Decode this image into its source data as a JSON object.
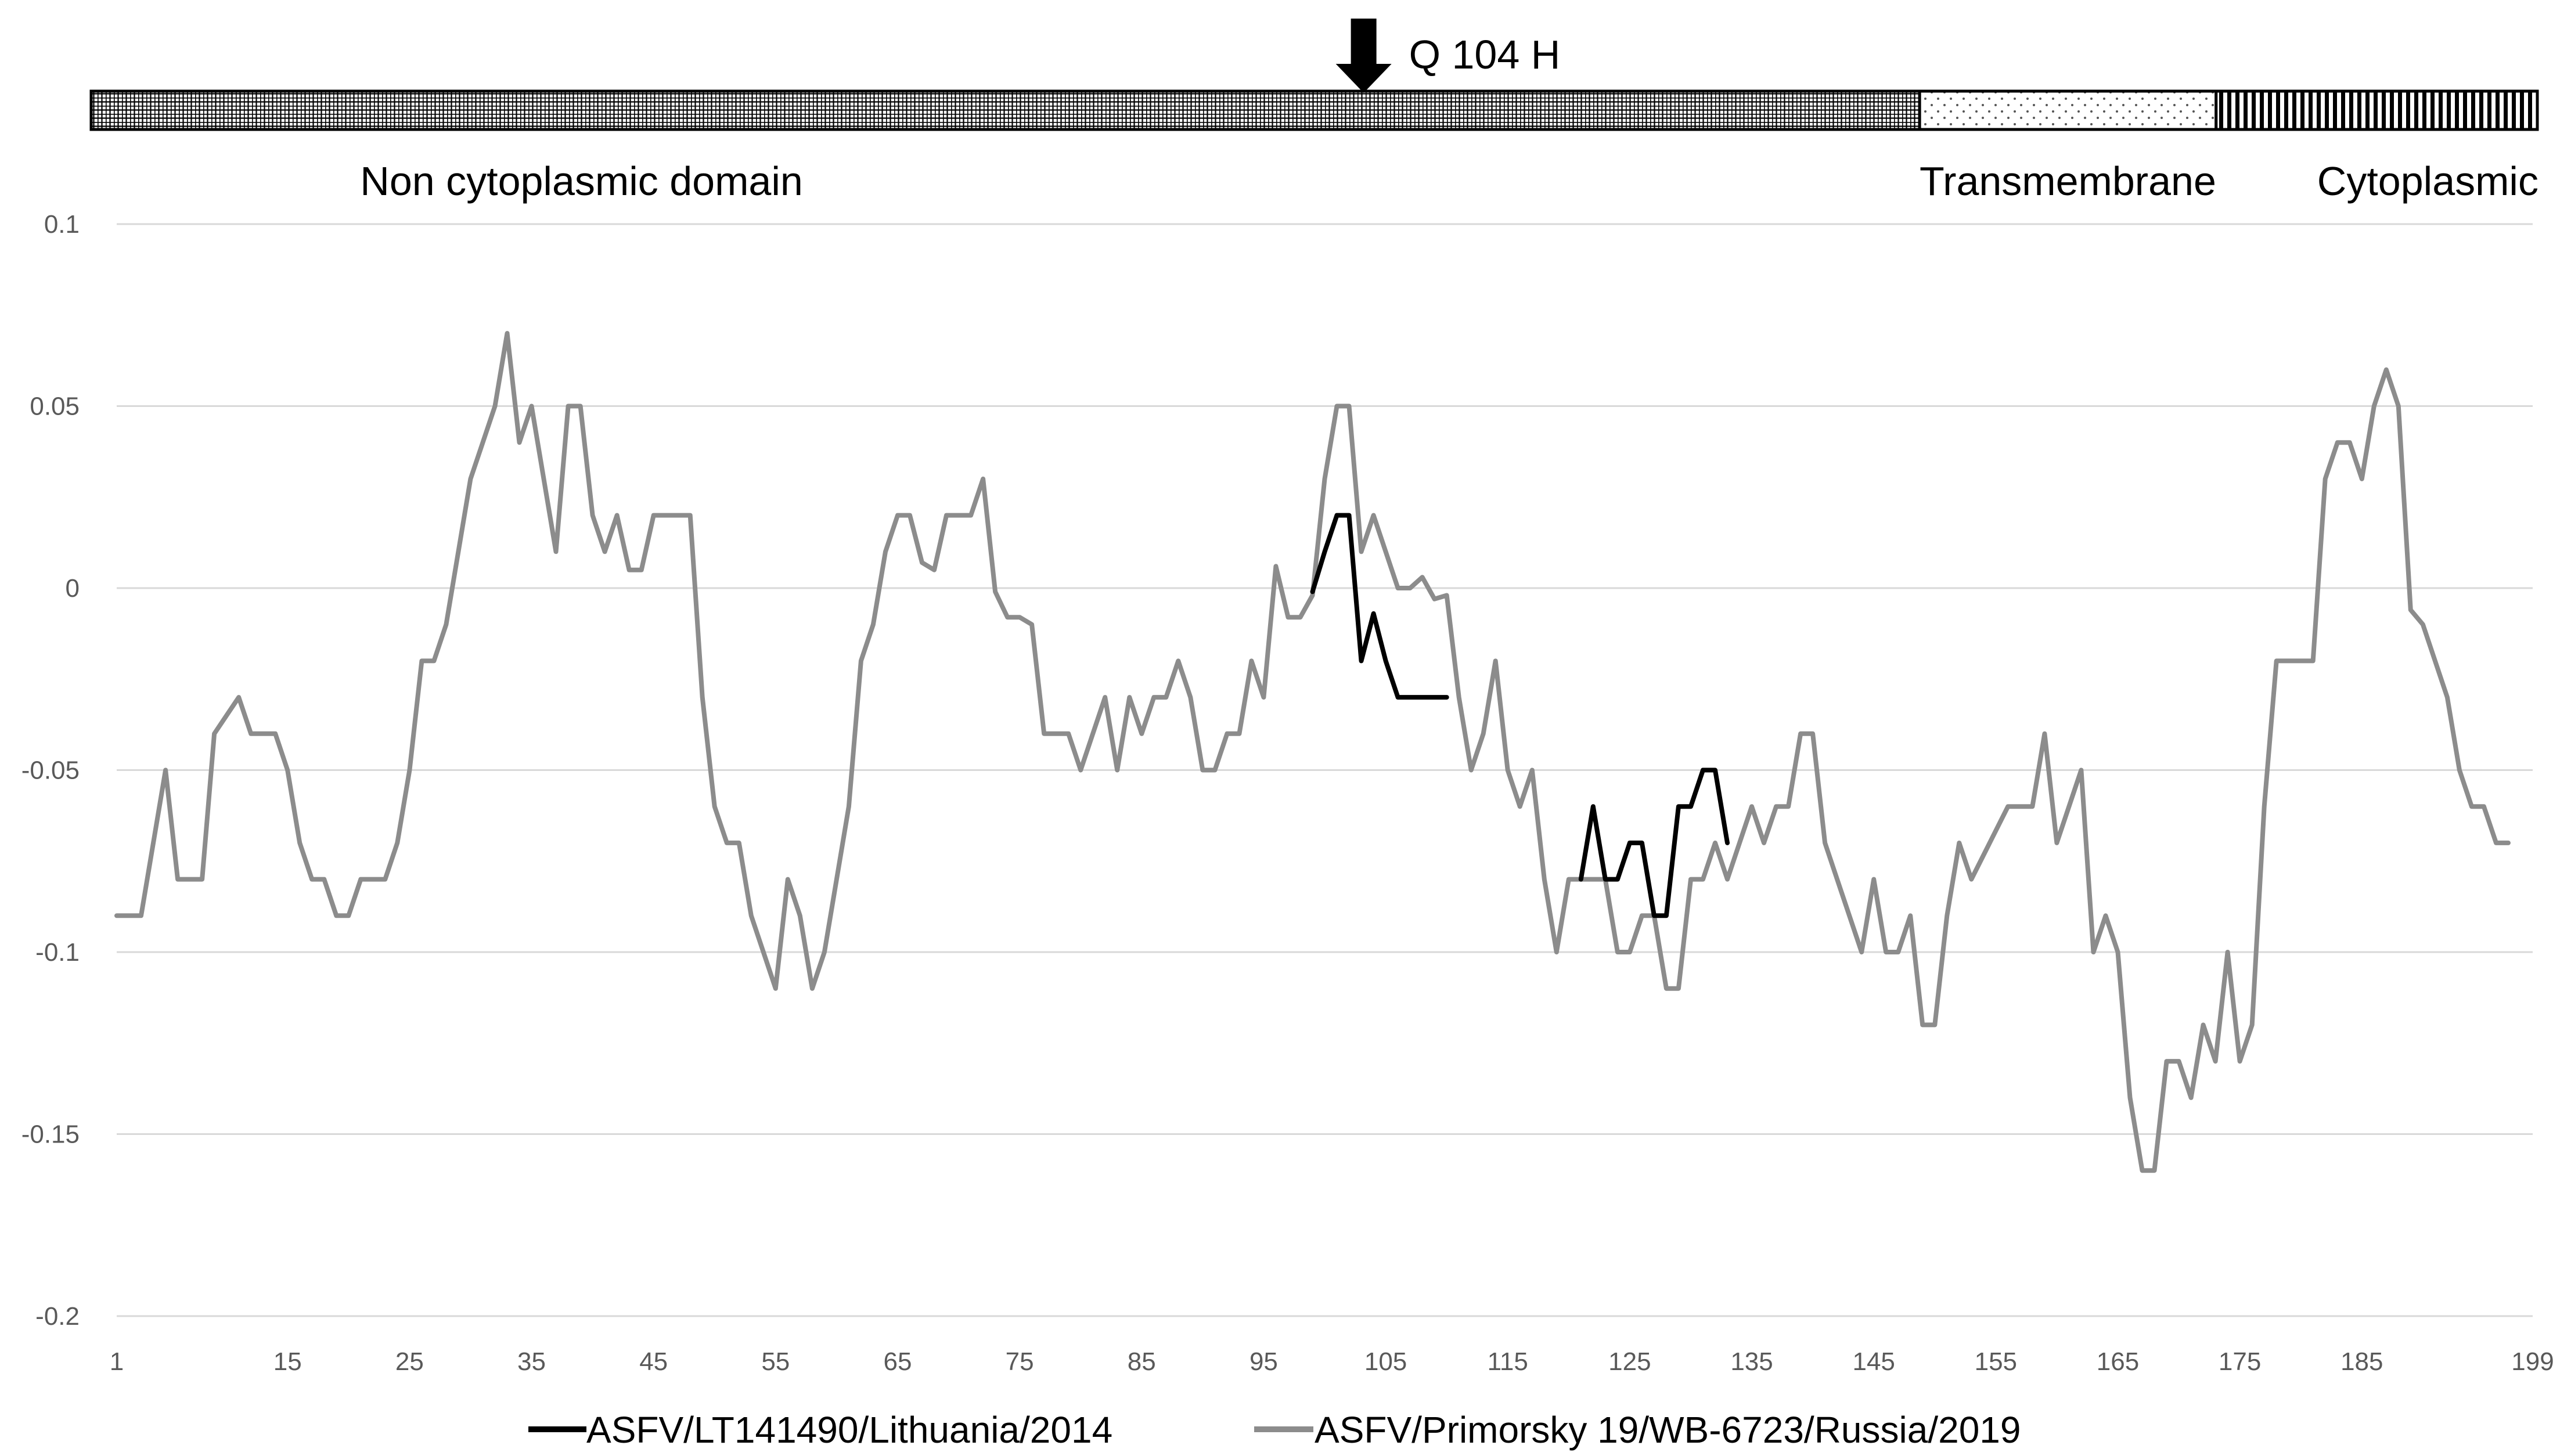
{
  "chart_data": {
    "type": "line",
    "xlim": [
      1,
      199
    ],
    "ylim": [
      -0.2,
      0.1
    ],
    "grid": true,
    "legend": "bottom",
    "x_ticks": [
      1,
      15,
      25,
      35,
      45,
      55,
      65,
      75,
      85,
      95,
      105,
      115,
      125,
      135,
      145,
      155,
      165,
      175,
      185,
      199
    ],
    "y_ticks": [
      0.1,
      0.05,
      0,
      -0.05,
      -0.1,
      -0.15,
      -0.2
    ],
    "y_tick_labels": [
      "0.1",
      "0.05",
      "0",
      "-0.05",
      "-0.1",
      "-0.15",
      "-0.2"
    ],
    "annotation": {
      "label": "Q 104 H",
      "x": 104
    },
    "domains": [
      {
        "name": "Non cytoplasmic domain",
        "start": 1,
        "end": 149,
        "pattern": "grid"
      },
      {
        "name": "Transmembrane",
        "start": 149,
        "end": 173,
        "pattern": "dots"
      },
      {
        "name": "Cytoplasmic",
        "start": 173,
        "end": 199,
        "pattern": "stripes"
      }
    ],
    "series": [
      {
        "name": "ASFV/Primorsky 19/WB-6723/Russia/2019",
        "color": "#8c8c8c",
        "points": [
          [
            1,
            -0.09
          ],
          [
            3,
            -0.09
          ],
          [
            5,
            -0.05
          ],
          [
            6,
            -0.08
          ],
          [
            8,
            -0.08
          ],
          [
            9,
            -0.04
          ],
          [
            11,
            -0.03
          ],
          [
            12,
            -0.04
          ],
          [
            14,
            -0.04
          ],
          [
            15,
            -0.05
          ],
          [
            16,
            -0.07
          ],
          [
            17,
            -0.08
          ],
          [
            18,
            -0.08
          ],
          [
            19,
            -0.09
          ],
          [
            20,
            -0.09
          ],
          [
            21,
            -0.08
          ],
          [
            23,
            -0.08
          ],
          [
            24,
            -0.07
          ],
          [
            25,
            -0.05
          ],
          [
            26,
            -0.02
          ],
          [
            27,
            -0.02
          ],
          [
            28,
            -0.01
          ],
          [
            29,
            0.01
          ],
          [
            30,
            0.03
          ],
          [
            31,
            0.04
          ],
          [
            32,
            0.05
          ],
          [
            33,
            0.07
          ],
          [
            34,
            0.04
          ],
          [
            35,
            0.05
          ],
          [
            36,
            0.03
          ],
          [
            37,
            0.01
          ],
          [
            38,
            0.05
          ],
          [
            39,
            0.05
          ],
          [
            40,
            0.02
          ],
          [
            41,
            0.01
          ],
          [
            42,
            0.02
          ],
          [
            43,
            0.005
          ],
          [
            44,
            0.005
          ],
          [
            45,
            0.02
          ],
          [
            48,
            0.02
          ],
          [
            49,
            -0.03
          ],
          [
            50,
            -0.06
          ],
          [
            51,
            -0.07
          ],
          [
            52,
            -0.07
          ],
          [
            53,
            -0.09
          ],
          [
            55,
            -0.11
          ],
          [
            56,
            -0.08
          ],
          [
            57,
            -0.09
          ],
          [
            58,
            -0.11
          ],
          [
            59,
            -0.1
          ],
          [
            61,
            -0.06
          ],
          [
            62,
            -0.02
          ],
          [
            63,
            -0.01
          ],
          [
            64,
            0.01
          ],
          [
            65,
            0.02
          ],
          [
            66,
            0.02
          ],
          [
            67,
            0.007
          ],
          [
            68,
            0.005
          ],
          [
            69,
            0.02
          ],
          [
            70,
            0.02
          ],
          [
            71,
            0.02
          ],
          [
            72,
            0.03
          ],
          [
            73,
            -0.001
          ],
          [
            74,
            -0.008
          ],
          [
            75,
            -0.008
          ],
          [
            76,
            -0.01
          ],
          [
            77,
            -0.04
          ],
          [
            79,
            -0.04
          ],
          [
            80,
            -0.05
          ],
          [
            82,
            -0.03
          ],
          [
            83,
            -0.05
          ],
          [
            84,
            -0.03
          ],
          [
            85,
            -0.04
          ],
          [
            86,
            -0.03
          ],
          [
            87,
            -0.03
          ],
          [
            88,
            -0.02
          ],
          [
            89,
            -0.03
          ],
          [
            90,
            -0.05
          ],
          [
            91,
            -0.05
          ],
          [
            92,
            -0.04
          ],
          [
            93,
            -0.04
          ],
          [
            94,
            -0.02
          ],
          [
            95,
            -0.03
          ],
          [
            96,
            0.006
          ],
          [
            97,
            -0.008
          ],
          [
            98,
            -0.008
          ],
          [
            99,
            -0.002
          ],
          [
            100,
            0.03
          ],
          [
            101,
            0.05
          ],
          [
            102,
            0.05
          ],
          [
            103,
            0.01
          ],
          [
            104,
            0.02
          ],
          [
            105,
            0.01
          ],
          [
            106,
            0.0
          ],
          [
            107,
            0.0
          ],
          [
            108,
            0.003
          ],
          [
            109,
            -0.003
          ],
          [
            110,
            -0.002
          ],
          [
            111,
            -0.03
          ],
          [
            112,
            -0.05
          ],
          [
            113,
            -0.04
          ],
          [
            114,
            -0.02
          ],
          [
            115,
            -0.05
          ],
          [
            116,
            -0.06
          ],
          [
            117,
            -0.05
          ],
          [
            118,
            -0.08
          ],
          [
            119,
            -0.1
          ],
          [
            120,
            -0.08
          ],
          [
            122,
            -0.08
          ],
          [
            123,
            -0.08
          ],
          [
            124,
            -0.1
          ],
          [
            125,
            -0.1
          ],
          [
            126,
            -0.09
          ],
          [
            127,
            -0.09
          ],
          [
            128,
            -0.11
          ],
          [
            129,
            -0.11
          ],
          [
            130,
            -0.08
          ],
          [
            131,
            -0.08
          ],
          [
            132,
            -0.07
          ],
          [
            133,
            -0.08
          ],
          [
            134,
            -0.07
          ],
          [
            135,
            -0.06
          ],
          [
            136,
            -0.07
          ],
          [
            137,
            -0.06
          ],
          [
            138,
            -0.06
          ],
          [
            139,
            -0.04
          ],
          [
            140,
            -0.04
          ],
          [
            141,
            -0.07
          ],
          [
            142,
            -0.08
          ],
          [
            144,
            -0.1
          ],
          [
            145,
            -0.08
          ],
          [
            146,
            -0.1
          ],
          [
            147,
            -0.1
          ],
          [
            148,
            -0.09
          ],
          [
            149,
            -0.12
          ],
          [
            150,
            -0.12
          ],
          [
            151,
            -0.09
          ],
          [
            152,
            -0.07
          ],
          [
            153,
            -0.08
          ],
          [
            156,
            -0.06
          ],
          [
            158,
            -0.06
          ],
          [
            159,
            -0.04
          ],
          [
            160,
            -0.07
          ],
          [
            161,
            -0.06
          ],
          [
            162,
            -0.05
          ],
          [
            163,
            -0.1
          ],
          [
            164,
            -0.09
          ],
          [
            165,
            -0.1
          ],
          [
            166,
            -0.14
          ],
          [
            167,
            -0.16
          ],
          [
            168,
            -0.16
          ],
          [
            169,
            -0.13
          ],
          [
            170,
            -0.13
          ],
          [
            171,
            -0.14
          ],
          [
            172,
            -0.12
          ],
          [
            173,
            -0.13
          ],
          [
            174,
            -0.1
          ],
          [
            175,
            -0.13
          ],
          [
            176,
            -0.12
          ],
          [
            177,
            -0.06
          ],
          [
            178,
            -0.02
          ],
          [
            181,
            -0.02
          ],
          [
            182,
            0.03
          ],
          [
            183,
            0.04
          ],
          [
            184,
            0.04
          ],
          [
            185,
            0.03
          ],
          [
            186,
            0.05
          ],
          [
            187,
            0.06
          ],
          [
            188,
            0.05
          ],
          [
            189,
            -0.006
          ],
          [
            190,
            -0.01
          ],
          [
            191,
            -0.02
          ],
          [
            192,
            -0.03
          ],
          [
            193,
            -0.05
          ],
          [
            194,
            -0.06
          ],
          [
            195,
            -0.06
          ],
          [
            196,
            -0.07
          ],
          [
            197,
            -0.07
          ]
        ]
      },
      {
        "name": "ASFV/LT141490/Lithuania/2014",
        "color": "#000000",
        "segments": [
          [
            [
              99,
              -0.001
            ],
            [
              100,
              0.01
            ],
            [
              101,
              0.02
            ],
            [
              102,
              0.02
            ],
            [
              103,
              -0.02
            ],
            [
              104,
              -0.007
            ],
            [
              105,
              -0.02
            ],
            [
              106,
              -0.03
            ],
            [
              110,
              -0.03
            ]
          ],
          [
            [
              121,
              -0.08
            ],
            [
              122,
              -0.06
            ],
            [
              123,
              -0.08
            ],
            [
              124,
              -0.08
            ],
            [
              125,
              -0.07
            ],
            [
              126,
              -0.07
            ],
            [
              127,
              -0.09
            ],
            [
              128,
              -0.09
            ],
            [
              129,
              -0.06
            ],
            [
              130,
              -0.06
            ],
            [
              131,
              -0.05
            ],
            [
              132,
              -0.05
            ],
            [
              133,
              -0.07
            ]
          ]
        ]
      }
    ],
    "legend_order": [
      "ASFV/LT141490/Lithuania/2014",
      "ASFV/Primorsky 19/WB-6723/Russia/2019"
    ]
  }
}
